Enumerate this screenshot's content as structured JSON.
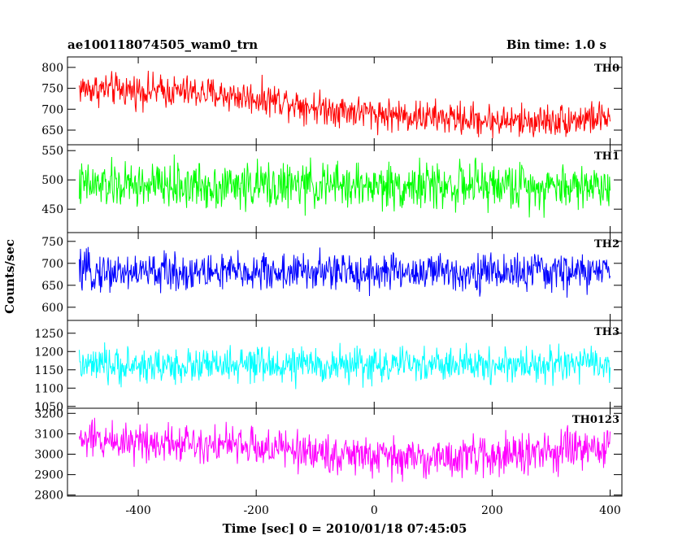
{
  "header": {
    "title": "ae100118074505_wam0_trn",
    "bin_time": "Bin time: 1.0 s"
  },
  "axes": {
    "xlabel": "Time [sec] 0 = 2010/01/18 07:45:05",
    "ylabel": "Counts/sec"
  },
  "chart_data": {
    "type": "line",
    "title": "ae100118074505_wam0_trn",
    "subtitle": "Bin time: 1.0 s",
    "xlabel": "Time [sec] 0 = 2010/01/18 07:45:05",
    "ylabel": "Counts/sec",
    "xlim": [
      -520,
      420
    ],
    "x_range_data": [
      -500,
      400
    ],
    "x_step": 1.0,
    "xticks": [
      -400,
      -200,
      0,
      200,
      400
    ],
    "grid": false,
    "legend": "none",
    "panels": [
      {
        "name": "TH0",
        "color": "#ff0000",
        "ylim": [
          615,
          825
        ],
        "yticks": [
          650,
          700,
          750,
          800
        ],
        "trend": [
          [
            -500,
            750
          ],
          [
            -300,
            740
          ],
          [
            -150,
            720
          ],
          [
            -100,
            705
          ],
          [
            0,
            690
          ],
          [
            100,
            680
          ],
          [
            250,
            670
          ],
          [
            400,
            680
          ]
        ],
        "noise_half_amplitude": 45
      },
      {
        "name": "TH1",
        "color": "#00ff00",
        "ylim": [
          410,
          560
        ],
        "yticks": [
          450,
          500,
          550
        ],
        "trend": [
          [
            -500,
            490
          ],
          [
            400,
            490
          ]
        ],
        "noise_half_amplitude": 45
      },
      {
        "name": "TH2",
        "color": "#0000ff",
        "ylim": [
          570,
          770
        ],
        "yticks": [
          600,
          650,
          700,
          750
        ],
        "trend": [
          [
            -500,
            680
          ],
          [
            400,
            680
          ]
        ],
        "noise_half_amplitude": 50
      },
      {
        "name": "TH3",
        "color": "#00ffff",
        "ylim": [
          1045,
          1285
        ],
        "yticks": [
          1050,
          1100,
          1150,
          1200,
          1250
        ],
        "trend": [
          [
            -500,
            1160
          ],
          [
            400,
            1165
          ]
        ],
        "noise_half_amplitude": 55
      },
      {
        "name": "TH0123",
        "color": "#ff00ff",
        "ylim": [
          2795,
          3225
        ],
        "yticks": [
          2800,
          2900,
          3000,
          3100,
          3200
        ],
        "trend": [
          [
            -500,
            3070
          ],
          [
            -300,
            3060
          ],
          [
            -100,
            3010
          ],
          [
            0,
            2985
          ],
          [
            100,
            2980
          ],
          [
            250,
            3000
          ],
          [
            400,
            3030
          ]
        ],
        "noise_half_amplitude": 110
      }
    ]
  }
}
